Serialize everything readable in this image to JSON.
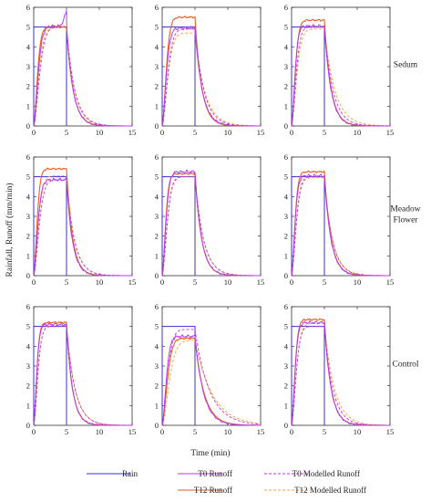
{
  "figure": {
    "ylabel": "Rainfall, Runoff (mm/min)",
    "xlabel": "Time (min)",
    "row_labels": [
      [
        "Sedum"
      ],
      [
        "Meadow",
        "Flower"
      ],
      [
        "Control"
      ]
    ]
  },
  "legend": [
    {
      "name": "Rain",
      "color": "#3a2fd1",
      "dash": "solid"
    },
    {
      "name": "T0 Runoff",
      "color": "#b23ee6",
      "dash": "solid"
    },
    {
      "name": "T0 Modelled Runoff",
      "color": "#c03ad8",
      "dash": "dashed"
    },
    {
      "name": "T12 Runoff",
      "color": "#f05a1e",
      "dash": "solid"
    },
    {
      "name": "T12 Modelled Runoff",
      "color": "#f7a040",
      "dash": "dashed"
    }
  ],
  "chart_data": {
    "type": "line",
    "layout": "3x3 small multiples",
    "xlim": [
      0,
      15
    ],
    "ylim": [
      0,
      6
    ],
    "xticks": [
      0,
      5,
      10,
      15
    ],
    "yticks": [
      0,
      1,
      2,
      3,
      4,
      5,
      6
    ],
    "grid": false,
    "legend_position": "bottom",
    "rain": {
      "start": 0,
      "end": 5,
      "intensity": 5
    },
    "panels": [
      {
        "row": 0,
        "col": 0,
        "peaks": {
          "t0": 5.05,
          "t12": 5.0,
          "m0": 5.0,
          "m12": 4.98
        },
        "t0_spike": 5.85,
        "rise": {
          "t0": 1.3,
          "t12": 1.1
        },
        "decay": {
          "t0": 1.0,
          "t12": 1.0,
          "m0": 1.25,
          "m12": 1.2
        }
      },
      {
        "row": 0,
        "col": 1,
        "peaks": {
          "t0": 4.95,
          "t12": 5.5,
          "m0": 4.9,
          "m12": 4.7
        },
        "rise": {
          "t0": 1.2,
          "t12": 1.2
        },
        "decay": {
          "t0": 1.1,
          "t12": 1.0,
          "m0": 1.35,
          "m12": 1.5
        }
      },
      {
        "row": 0,
        "col": 2,
        "peaks": {
          "t0": 5.05,
          "t12": 5.35,
          "m0": 5.0,
          "m12": 4.9
        },
        "rise": {
          "t0": 1.0,
          "t12": 1.1
        },
        "decay": {
          "t0": 1.0,
          "t12": 1.0,
          "m0": 1.3,
          "m12": 1.6
        }
      },
      {
        "row": 1,
        "col": 0,
        "peaks": {
          "t0": 4.85,
          "t12": 5.4,
          "m0": 4.85,
          "m12": 5.05
        },
        "rise": {
          "t0": 1.2,
          "t12": 1.0
        },
        "decay": {
          "t0": 0.9,
          "t12": 0.9,
          "m0": 1.2,
          "m12": 1.2
        }
      },
      {
        "row": 1,
        "col": 1,
        "peaks": {
          "t0": 5.25,
          "t12": 5.15,
          "m0": 5.0,
          "m12": 5.0
        },
        "rise": {
          "t0": 1.1,
          "t12": 1.0
        },
        "decay": {
          "t0": 1.0,
          "t12": 1.0,
          "m0": 1.3,
          "m12": 1.3
        }
      },
      {
        "row": 1,
        "col": 2,
        "peaks": {
          "t0": 5.05,
          "t12": 5.25,
          "m0": 5.0,
          "m12": 4.95
        },
        "rise": {
          "t0": 1.0,
          "t12": 1.0
        },
        "decay": {
          "t0": 1.0,
          "t12": 1.0,
          "m0": 1.2,
          "m12": 1.25
        }
      },
      {
        "row": 2,
        "col": 0,
        "peaks": {
          "t0": 5.1,
          "t12": 5.2,
          "m0": 5.0,
          "m12": 5.05
        },
        "rise": {
          "t0": 0.9,
          "t12": 0.9
        },
        "decay": {
          "t0": 0.9,
          "t12": 0.9,
          "m0": 1.3,
          "m12": 1.3
        }
      },
      {
        "row": 2,
        "col": 1,
        "peaks": {
          "t0": 4.5,
          "t12": 4.4,
          "m0": 4.85,
          "m12": 4.3
        },
        "rise": {
          "t0": 1.2,
          "t12": 1.5
        },
        "decay": {
          "t0": 1.3,
          "t12": 1.4,
          "m0": 2.2,
          "m12": 2.6
        }
      },
      {
        "row": 2,
        "col": 2,
        "peaks": {
          "t0": 5.2,
          "t12": 5.35,
          "m0": 5.0,
          "m12": 5.15
        },
        "rise": {
          "t0": 1.0,
          "t12": 1.0
        },
        "decay": {
          "t0": 1.0,
          "t12": 1.0,
          "m0": 1.3,
          "m12": 1.5
        }
      }
    ]
  }
}
